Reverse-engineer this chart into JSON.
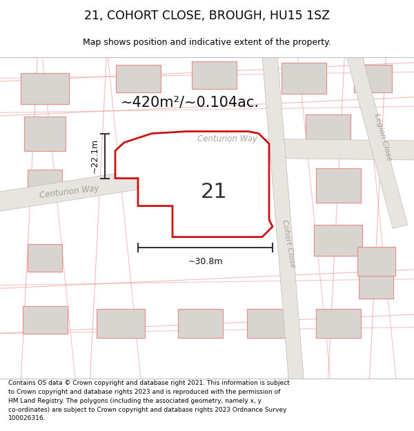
{
  "title": "21, COHORT CLOSE, BROUGH, HU15 1SZ",
  "subtitle": "Map shows position and indicative extent of the property.",
  "footer": "Contains OS data © Crown copyright and database right 2021. This information is subject\nto Crown copyright and database rights 2023 and is reproduced with the permission of\nHM Land Registry. The polygons (including the associated geometry, namely x, y\nco-ordinates) are subject to Crown copyright and database rights 2023 Ordnance Survey\n100026316.",
  "map_bg": "#f7f6f4",
  "building_face": "#d8d5d0",
  "building_edge": "#e89090",
  "road_face": "#e8e5e0",
  "road_edge": "#c8c0b8",
  "highlight_color": "#cc1111",
  "highlight_face": "#f0ede8",
  "area_text": "~420m²/~0.104ac.",
  "label_number": "21",
  "dim_width": "~30.8m",
  "dim_height": "~22.1m",
  "road_label_centurion1": "Centurion Way",
  "road_label_centurion2": "Centurion Way",
  "road_label_cohort": "Cohort Close",
  "road_label_legion": "Legion Close"
}
